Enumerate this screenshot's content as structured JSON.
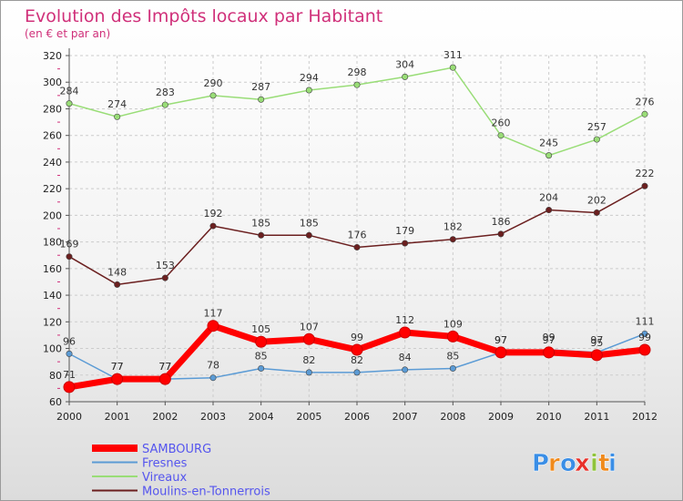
{
  "chart_data": {
    "type": "line",
    "title": "Evolution des Impôts locaux par Habitant",
    "subtitle": "(en € et par an)",
    "x": [
      "2000",
      "2001",
      "2002",
      "2003",
      "2004",
      "2005",
      "2006",
      "2007",
      "2008",
      "2009",
      "2010",
      "2011",
      "2012"
    ],
    "y_ticks": [
      "60",
      "80",
      "100",
      "120",
      "140",
      "160",
      "180",
      "200",
      "220",
      "240",
      "260",
      "280",
      "300",
      "320"
    ],
    "ylim": [
      60,
      320
    ],
    "grid": true,
    "legend_position": "bottom-left",
    "series": [
      {
        "name": "SAMBOURG",
        "color": "#ff0000",
        "values": [
          71,
          77,
          77,
          117,
          105,
          107,
          99,
          112,
          109,
          97,
          97,
          95,
          99
        ]
      },
      {
        "name": "Fresnes",
        "color": "#5b9bd5",
        "values": [
          96,
          77,
          77,
          78,
          85,
          82,
          82,
          84,
          85,
          97,
          99,
          97,
          111
        ]
      },
      {
        "name": "Vireaux",
        "color": "#99dd77",
        "values": [
          284,
          274,
          283,
          290,
          287,
          294,
          298,
          304,
          311,
          260,
          245,
          257,
          276
        ]
      },
      {
        "name": "Moulins-en-Tonnerrois",
        "color": "#6b1f1f",
        "values": [
          169,
          148,
          153,
          192,
          185,
          185,
          176,
          179,
          182,
          186,
          204,
          202,
          222
        ]
      }
    ],
    "legend_text_color": "#5555ee"
  },
  "brand": {
    "letters": [
      "P",
      "r",
      "o",
      "x",
      "i",
      "t",
      "i"
    ],
    "colors": [
      "#3a8ee6",
      "#f08a1c",
      "#3a8ee6",
      "#e8302a",
      "#8fc33b",
      "#f08a1c",
      "#3a8ee6"
    ]
  }
}
